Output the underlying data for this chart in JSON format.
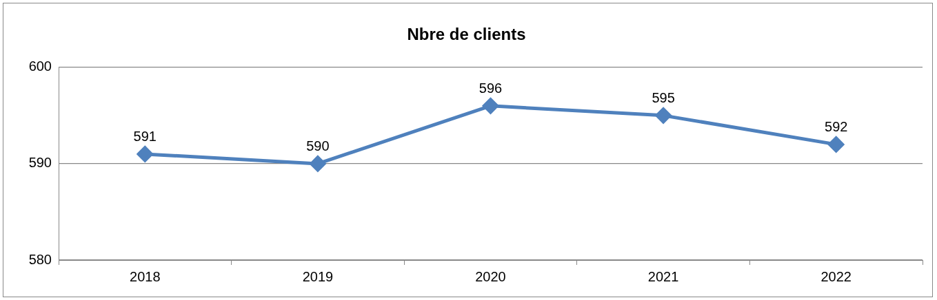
{
  "chart_data": {
    "type": "line",
    "title": "Nbre de clients",
    "categories": [
      "2018",
      "2019",
      "2020",
      "2021",
      "2022"
    ],
    "series": [
      {
        "color": "#4f81bd",
        "values": [
          591,
          590,
          596,
          595,
          592
        ]
      }
    ],
    "ylim": [
      580,
      600
    ],
    "yticks": [
      580,
      590,
      600
    ],
    "grid": "y",
    "marker": "diamond",
    "line_style": "solid",
    "data_labels": true
  }
}
